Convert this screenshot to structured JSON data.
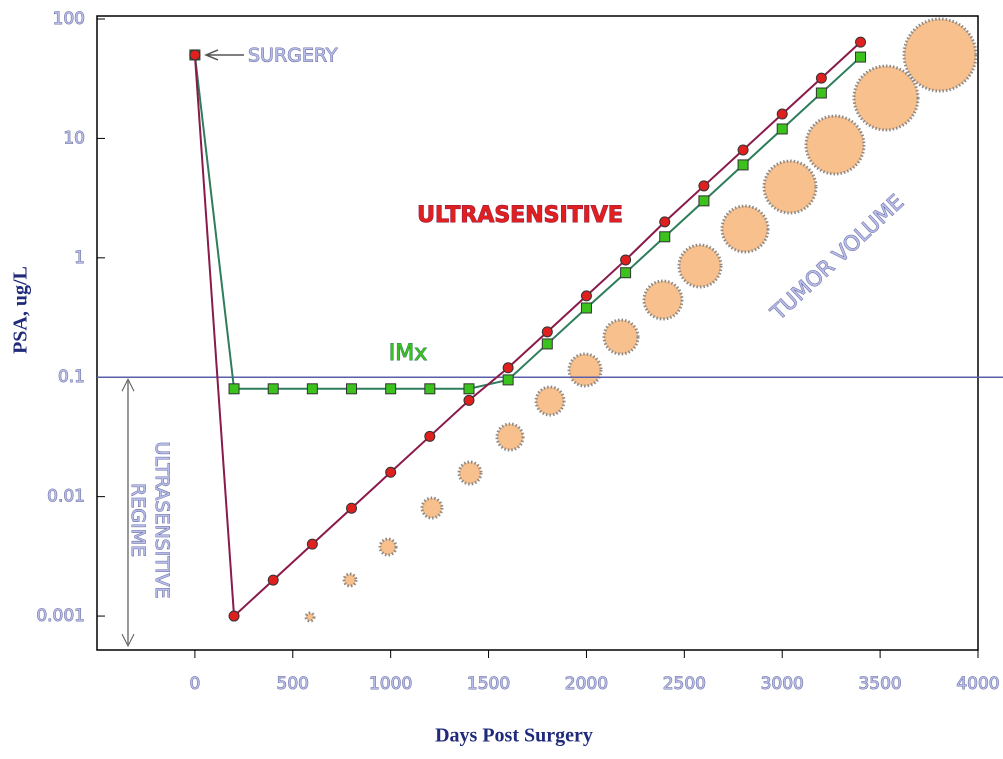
{
  "chart_data": {
    "type": "line",
    "log_y": true,
    "y_label": "PSA, ug/L",
    "x_label": "Days Post Surgery",
    "xlim": [
      -500,
      4000
    ],
    "ylim": [
      0.0005,
      100
    ],
    "xticks": [
      0,
      500,
      1000,
      1500,
      2000,
      2500,
      3000,
      3500,
      4000
    ],
    "yticks": [
      100,
      10,
      1,
      0.1,
      0.01,
      0.001
    ],
    "x": [
      0,
      200,
      400,
      600,
      800,
      1000,
      1200,
      1400,
      1600,
      1800,
      2000,
      2200,
      2400,
      2600,
      2800,
      3000,
      3200,
      3400
    ],
    "reference_line": 0.1,
    "series": [
      {
        "name": "ULTRASENSITIVE",
        "color": "#8a1a4a",
        "marker_color": "#e0201e",
        "marker": "circle",
        "values": [
          50,
          0.001,
          0.002,
          0.004,
          0.008,
          0.016,
          0.032,
          0.064,
          0.12,
          0.24,
          0.48,
          0.96,
          2,
          4,
          8,
          16,
          32,
          64
        ]
      },
      {
        "name": "IMx",
        "color": "#2e7d5b",
        "marker_color": "#3cc21c",
        "marker": "square",
        "values": [
          50,
          0.08,
          0.08,
          0.08,
          0.08,
          0.08,
          0.08,
          0.08,
          0.095,
          0.19,
          0.38,
          0.75,
          1.5,
          3,
          6,
          12,
          24,
          48
        ]
      }
    ],
    "annotations": {
      "surgery": "SURGERY",
      "tumor": "TUMOR VOLUME",
      "regime": [
        "ULTRASENSITIVE",
        "REGIME"
      ]
    }
  }
}
